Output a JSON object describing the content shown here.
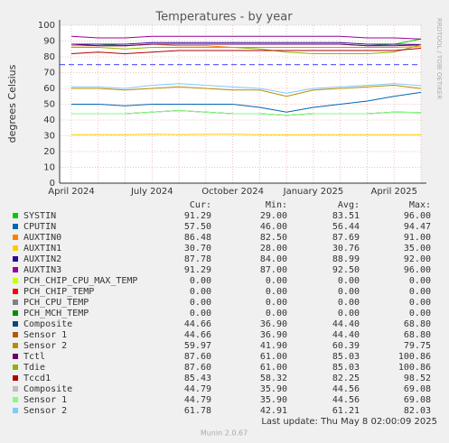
{
  "chart_data": {
    "type": "line",
    "title": "Temperatures - by year",
    "y_label": "degrees Celsius",
    "side_text": "RRDTOOL / TOBI OETIKER",
    "categories": [
      "April 2024",
      null,
      null,
      "July 2024",
      null,
      null,
      "October 2024",
      null,
      null,
      "January 2025",
      null,
      null,
      "April 2025",
      null
    ],
    "ylim": [
      0,
      100
    ],
    "yticks": [
      0,
      10,
      20,
      30,
      40,
      50,
      60,
      70,
      80,
      90,
      100
    ],
    "grid": true,
    "warning_lines": [
      75
    ],
    "series": [
      {
        "name": "SYSTIN",
        "color": "#00cc00",
        "values": [
          88,
          88,
          87,
          88,
          88,
          88,
          88,
          88,
          88,
          88,
          88,
          87,
          88,
          91.29
        ]
      },
      {
        "name": "CPUTIN",
        "color": "#0066b3",
        "values": [
          50,
          50,
          49,
          50,
          50,
          50,
          50,
          48,
          45,
          48,
          50,
          52,
          55,
          57.5
        ]
      },
      {
        "name": "AUXTIN0",
        "color": "#ff8000",
        "values": [
          87,
          87,
          87,
          88,
          87,
          87,
          86,
          86,
          86,
          86,
          86,
          86,
          86,
          86.48
        ]
      },
      {
        "name": "AUXTIN1",
        "color": "#ffcc00",
        "values": [
          30.7,
          30.8,
          30.7,
          31,
          30.8,
          30.9,
          31,
          30.7,
          30.6,
          30.7,
          30.7,
          30.7,
          30.7,
          30.7
        ]
      },
      {
        "name": "AUXTIN2",
        "color": "#330099",
        "values": [
          88,
          88,
          88,
          89,
          89,
          89,
          89,
          89,
          89,
          89,
          89,
          88,
          88,
          87.78
        ]
      },
      {
        "name": "AUXTIN3",
        "color": "#990099",
        "values": [
          93,
          92,
          92,
          93,
          93,
          93,
          93,
          93,
          93,
          93,
          93,
          92,
          92,
          91.29
        ]
      },
      {
        "name": "PCH_CHIP_CPU_MAX_TEMP",
        "color": "#ccff00",
        "values": [
          0,
          0,
          0,
          0,
          0,
          0,
          0,
          0,
          0,
          0,
          0,
          0,
          0,
          0
        ]
      },
      {
        "name": "PCH_CHIP_TEMP",
        "color": "#ff0000",
        "values": [
          0,
          0,
          0,
          0,
          0,
          0,
          0,
          0,
          0,
          0,
          0,
          0,
          0,
          0
        ]
      },
      {
        "name": "PCH_CPU_TEMP",
        "color": "#808080",
        "values": [
          0,
          0,
          0,
          0,
          0,
          0,
          0,
          0,
          0,
          0,
          0,
          0,
          0,
          0
        ]
      },
      {
        "name": "PCH_MCH_TEMP",
        "color": "#008f00",
        "values": [
          0,
          0,
          0,
          0,
          0,
          0,
          0,
          0,
          0,
          0,
          0,
          0,
          0,
          0
        ]
      },
      {
        "name": "Composite",
        "color": "#00487d",
        "values": [
          44,
          44,
          44,
          45,
          46,
          45,
          44,
          44,
          43,
          44,
          44,
          44,
          45,
          44.66
        ]
      },
      {
        "name": "Sensor 1",
        "color": "#b35a00",
        "values": [
          44,
          44,
          44,
          45,
          46,
          45,
          44,
          44,
          43,
          44,
          44,
          44,
          45,
          44.66
        ]
      },
      {
        "name": "Sensor 2",
        "color": "#b38f00",
        "values": [
          60,
          60,
          59,
          60,
          61,
          60,
          59,
          59,
          55,
          59,
          60,
          61,
          62,
          59.97
        ]
      },
      {
        "name": "Tctl",
        "color": "#6b006b",
        "values": [
          88,
          87,
          87,
          88,
          88,
          88,
          88,
          88,
          88,
          88,
          88,
          87,
          87,
          87.6
        ]
      },
      {
        "name": "Tdie",
        "color": "#8fb300",
        "values": [
          86,
          86,
          85,
          86,
          86,
          86,
          86,
          85,
          83,
          82,
          82,
          82,
          83,
          87.6
        ]
      },
      {
        "name": "Tccd1",
        "color": "#b30000",
        "values": [
          82,
          83,
          82,
          83,
          84,
          84,
          84,
          84,
          84,
          84,
          84,
          84,
          84,
          85.43
        ]
      },
      {
        "name": "Composite",
        "color": "#bebebe",
        "values": [
          44,
          44,
          44,
          45,
          46,
          45,
          44,
          44,
          43,
          44,
          44,
          44,
          45,
          44.79
        ]
      },
      {
        "name": "Sensor 1",
        "color": "#80ff80",
        "values": [
          44,
          44,
          44,
          45,
          46,
          45,
          44,
          44,
          43,
          44,
          44,
          44,
          45,
          44.79
        ]
      },
      {
        "name": "Sensor 2",
        "color": "#80c9ff",
        "values": [
          61,
          61,
          60,
          62,
          63,
          62,
          61,
          60,
          57,
          60,
          61,
          62,
          63,
          61.78
        ]
      }
    ],
    "legend_table": {
      "headers": [
        "Cur:",
        "Min:",
        "Avg:",
        "Max:"
      ],
      "rows": [
        [
          "91.29",
          "29.00",
          "83.51",
          "96.00"
        ],
        [
          "57.50",
          "46.00",
          "56.44",
          "94.47"
        ],
        [
          "86.48",
          "82.50",
          "87.69",
          "91.00"
        ],
        [
          "30.70",
          "28.00",
          "30.76",
          "35.00"
        ],
        [
          "87.78",
          "84.00",
          "88.99",
          "92.00"
        ],
        [
          "91.29",
          "87.00",
          "92.50",
          "96.00"
        ],
        [
          "0.00",
          "0.00",
          "0.00",
          "0.00"
        ],
        [
          "0.00",
          "0.00",
          "0.00",
          "0.00"
        ],
        [
          "0.00",
          "0.00",
          "0.00",
          "0.00"
        ],
        [
          "0.00",
          "0.00",
          "0.00",
          "0.00"
        ],
        [
          "44.66",
          "36.90",
          "44.40",
          "68.80"
        ],
        [
          "44.66",
          "36.90",
          "44.40",
          "68.80"
        ],
        [
          "59.97",
          "41.90",
          "60.39",
          "79.75"
        ],
        [
          "87.60",
          "61.00",
          "85.03",
          "100.86"
        ],
        [
          "87.60",
          "61.00",
          "85.03",
          "100.86"
        ],
        [
          "85.43",
          "58.32",
          "82.25",
          "98.52"
        ],
        [
          "44.79",
          "35.90",
          "44.56",
          "69.08"
        ],
        [
          "44.79",
          "35.90",
          "44.56",
          "69.08"
        ],
        [
          "61.78",
          "42.91",
          "61.21",
          "82.03"
        ]
      ]
    },
    "last_update": "Last update: Thu May  8 02:00:09 2025",
    "footer": "Munin 2.0.67"
  }
}
